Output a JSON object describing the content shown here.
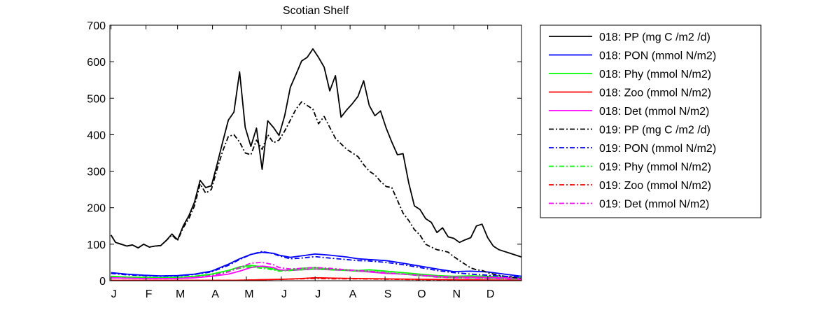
{
  "chart_data": {
    "type": "line",
    "title": "Scotian Shelf",
    "xlabel": "",
    "ylabel": "",
    "xlim": [
      0,
      365
    ],
    "ylim": [
      0,
      700
    ],
    "yticks": [
      0,
      100,
      200,
      300,
      400,
      500,
      600,
      700
    ],
    "month_labels": [
      "J",
      "F",
      "M",
      "A",
      "M",
      "J",
      "J",
      "A",
      "S",
      "O",
      "N",
      "D"
    ],
    "month_positions": [
      1,
      32,
      60,
      91,
      121,
      152,
      182,
      213,
      244,
      274,
      305,
      335
    ],
    "grid": false,
    "legend_position": "outside-right",
    "series": [
      {
        "name": "018: PP (mg C /m2 /d)",
        "color": "#000000",
        "dash": "solid",
        "x": [
          1,
          5,
          10,
          15,
          20,
          25,
          30,
          35,
          40,
          45,
          50,
          55,
          60,
          65,
          70,
          75,
          80,
          85,
          90,
          95,
          100,
          105,
          110,
          115,
          120,
          125,
          130,
          135,
          140,
          145,
          150,
          155,
          160,
          165,
          170,
          175,
          180,
          185,
          190,
          195,
          200,
          205,
          210,
          215,
          220,
          225,
          230,
          235,
          240,
          245,
          250,
          255,
          260,
          265,
          270,
          275,
          280,
          285,
          290,
          295,
          300,
          305,
          310,
          315,
          320,
          325,
          330,
          335,
          340,
          345,
          350,
          355,
          360,
          365
        ],
        "y": [
          125,
          105,
          100,
          95,
          98,
          90,
          100,
          92,
          95,
          96,
          110,
          128,
          112,
          150,
          178,
          215,
          275,
          255,
          260,
          318,
          380,
          440,
          462,
          572,
          420,
          368,
          418,
          305,
          438,
          420,
          398,
          452,
          530,
          565,
          602,
          612,
          635,
          612,
          585,
          520,
          562,
          448,
          468,
          485,
          505,
          548,
          480,
          452,
          465,
          418,
          380,
          345,
          348,
          268,
          205,
          195,
          170,
          160,
          132,
          145,
          120,
          116,
          105,
          112,
          118,
          150,
          155,
          118,
          95,
          85,
          80,
          75,
          70,
          65
        ]
      },
      {
        "name": "018: PON (mmol N/m2)",
        "color": "#0000ff",
        "dash": "solid",
        "x": [
          1,
          15,
          30,
          45,
          60,
          75,
          90,
          105,
          115,
          125,
          135,
          145,
          150,
          160,
          170,
          182,
          195,
          210,
          220,
          230,
          245,
          260,
          275,
          290,
          305,
          320,
          335,
          350,
          365
        ],
        "y": [
          22,
          18,
          15,
          13,
          14,
          18,
          26,
          45,
          60,
          72,
          78,
          75,
          70,
          64,
          68,
          73,
          70,
          65,
          60,
          58,
          55,
          48,
          40,
          32,
          25,
          26,
          24,
          18,
          12
        ]
      },
      {
        "name": "018: Phy (mmol N/m2)",
        "color": "#00ff00",
        "dash": "solid",
        "x": [
          1,
          15,
          30,
          45,
          60,
          75,
          90,
          105,
          115,
          125,
          135,
          145,
          150,
          160,
          170,
          182,
          195,
          210,
          220,
          230,
          245,
          260,
          275,
          290,
          305,
          320,
          335,
          350,
          365
        ],
        "y": [
          12,
          10,
          9,
          8,
          9,
          12,
          18,
          28,
          38,
          42,
          38,
          32,
          28,
          30,
          34,
          36,
          32,
          30,
          28,
          30,
          26,
          22,
          18,
          14,
          12,
          13,
          12,
          10,
          8
        ]
      },
      {
        "name": "018: Zoo (mmol N/m2)",
        "color": "#ff0000",
        "dash": "solid",
        "x": [
          1,
          30,
          60,
          90,
          110,
          125,
          140,
          155,
          170,
          182,
          200,
          220,
          245,
          270,
          300,
          330,
          365
        ],
        "y": [
          1,
          1,
          1,
          1,
          1,
          2,
          3,
          4,
          6,
          8,
          7,
          6,
          5,
          4,
          3,
          2,
          1
        ]
      },
      {
        "name": "018: Det (mmol N/m2)",
        "color": "#ff00ff",
        "dash": "solid",
        "x": [
          1,
          15,
          30,
          45,
          60,
          75,
          90,
          105,
          115,
          125,
          135,
          145,
          150,
          160,
          170,
          182,
          195,
          210,
          220,
          230,
          245,
          260,
          275,
          290,
          305,
          320,
          335,
          350,
          365
        ],
        "y": [
          8,
          7,
          6,
          6,
          6,
          8,
          12,
          18,
          26,
          36,
          40,
          36,
          30,
          28,
          30,
          32,
          30,
          28,
          26,
          24,
          20,
          18,
          15,
          12,
          10,
          10,
          9,
          8,
          6
        ]
      },
      {
        "name": "019: PP (mg C /m2 /d)",
        "color": "#000000",
        "dash": "7,3,2,3",
        "x": [
          1,
          5,
          10,
          15,
          20,
          25,
          30,
          35,
          40,
          45,
          50,
          55,
          60,
          65,
          70,
          75,
          80,
          85,
          90,
          95,
          100,
          105,
          110,
          115,
          120,
          125,
          130,
          135,
          140,
          145,
          150,
          155,
          160,
          165,
          170,
          175,
          180,
          185,
          190,
          195,
          200,
          205,
          210,
          215,
          220,
          225,
          230,
          235,
          240,
          245,
          250,
          255,
          260,
          265,
          270,
          275,
          280,
          285,
          290,
          295,
          300,
          305,
          310,
          315,
          320,
          325,
          330,
          335,
          340,
          345,
          350,
          355,
          360,
          365
        ],
        "y": [
          125,
          105,
          100,
          95,
          98,
          90,
          100,
          92,
          95,
          96,
          110,
          125,
          110,
          145,
          170,
          205,
          265,
          240,
          250,
          305,
          355,
          395,
          400,
          380,
          350,
          345,
          385,
          360,
          400,
          378,
          385,
          410,
          440,
          470,
          490,
          480,
          470,
          430,
          450,
          420,
          390,
          375,
          360,
          350,
          340,
          318,
          300,
          290,
          272,
          258,
          255,
          220,
          185,
          165,
          140,
          125,
          100,
          92,
          85,
          82,
          78,
          66,
          55,
          45,
          35,
          30,
          28,
          22,
          18,
          15,
          12,
          10,
          8,
          6
        ]
      },
      {
        "name": "019: PON (mmol N/m2)",
        "color": "#0000ff",
        "dash": "7,3,2,3",
        "x": [
          1,
          15,
          30,
          45,
          60,
          75,
          90,
          105,
          115,
          125,
          135,
          145,
          150,
          160,
          170,
          182,
          195,
          210,
          220,
          230,
          245,
          260,
          275,
          290,
          305,
          320,
          335,
          350,
          365
        ],
        "y": [
          20,
          16,
          14,
          12,
          13,
          17,
          24,
          42,
          58,
          72,
          80,
          74,
          68,
          60,
          62,
          66,
          62,
          58,
          55,
          54,
          50,
          44,
          36,
          28,
          22,
          18,
          15,
          12,
          10
        ]
      },
      {
        "name": "019: Phy (mmol N/m2)",
        "color": "#00ff00",
        "dash": "7,3,2,3",
        "x": [
          1,
          15,
          30,
          45,
          60,
          75,
          90,
          105,
          115,
          125,
          135,
          145,
          150,
          160,
          170,
          182,
          195,
          210,
          220,
          230,
          245,
          260,
          275,
          290,
          305,
          320,
          335,
          350,
          365
        ],
        "y": [
          10,
          9,
          8,
          7,
          8,
          11,
          16,
          26,
          34,
          38,
          34,
          30,
          26,
          28,
          30,
          32,
          30,
          28,
          26,
          26,
          22,
          18,
          14,
          10,
          8,
          7,
          6,
          5,
          4
        ]
      },
      {
        "name": "019: Zoo (mmol N/m2)",
        "color": "#ff0000",
        "dash": "7,3,2,3",
        "x": [
          1,
          30,
          60,
          90,
          110,
          125,
          140,
          155,
          170,
          182,
          200,
          220,
          245,
          270,
          300,
          330,
          365
        ],
        "y": [
          1,
          1,
          1,
          1,
          1,
          2,
          3,
          4,
          5,
          6,
          5,
          5,
          4,
          3,
          2,
          1,
          1
        ]
      },
      {
        "name": "019: Det (mmol N/m2)",
        "color": "#ff00ff",
        "dash": "7,3,2,3",
        "x": [
          1,
          15,
          30,
          45,
          60,
          75,
          90,
          105,
          115,
          125,
          135,
          145,
          150,
          160,
          170,
          182,
          195,
          210,
          220,
          230,
          245,
          260,
          275,
          290,
          305,
          320,
          335,
          350,
          365
        ],
        "y": [
          8,
          7,
          6,
          6,
          6,
          9,
          14,
          24,
          36,
          48,
          50,
          44,
          36,
          32,
          34,
          36,
          34,
          30,
          28,
          26,
          22,
          18,
          14,
          10,
          8,
          7,
          6,
          5,
          4
        ]
      }
    ]
  }
}
